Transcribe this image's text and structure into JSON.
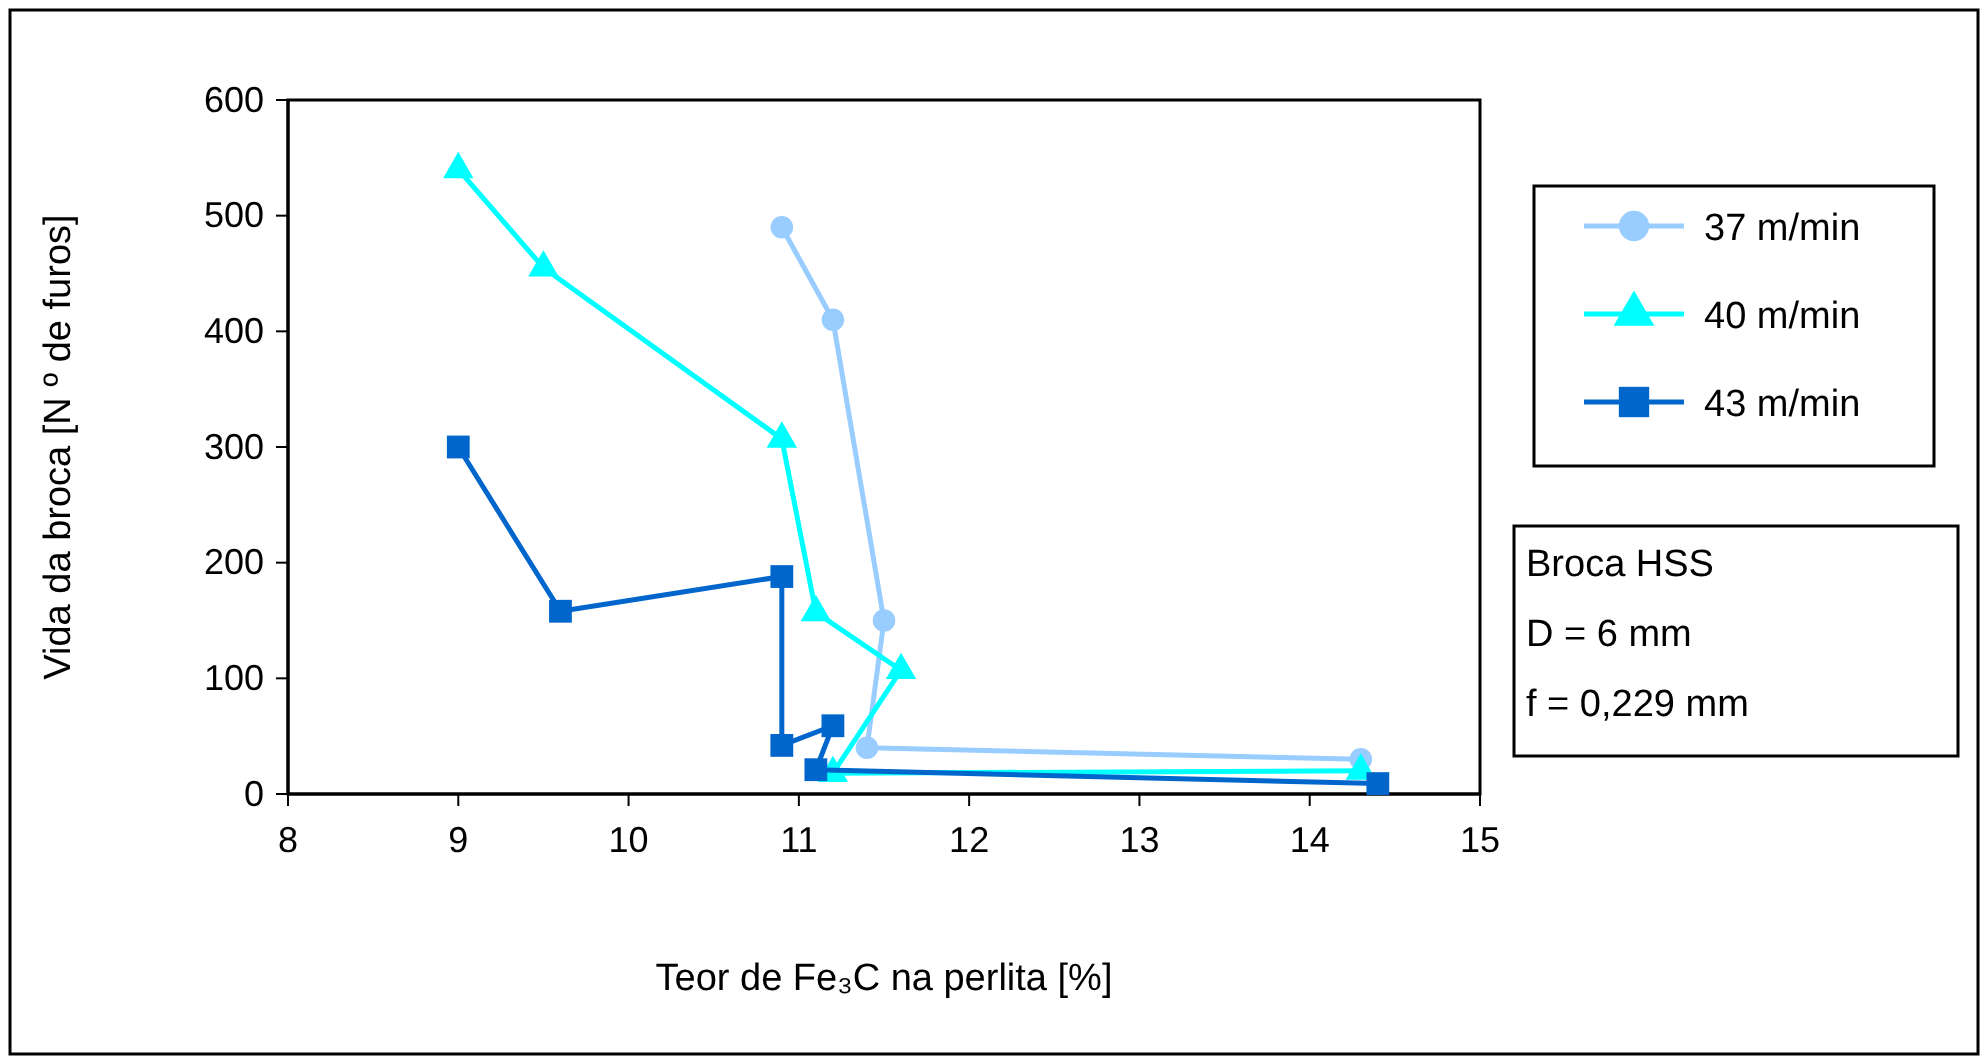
{
  "chart_data": {
    "type": "line",
    "xlabel": "Teor de Fe₃C na perlita [%]",
    "ylabel": "Vida da broca [N º de furos]",
    "xlim": [
      8,
      15
    ],
    "xticks": [
      8,
      9,
      10,
      11,
      12,
      13,
      14,
      15
    ],
    "ylim": [
      0,
      600
    ],
    "yticks": [
      0,
      100,
      200,
      300,
      400,
      500,
      600
    ],
    "grid": false,
    "legend": "right",
    "annotations": [
      "Broca HSS",
      "D = 6 mm",
      "f = 0,229 mm"
    ],
    "series": [
      {
        "name": "37 m/min",
        "color": "#99ccff",
        "marker": "circle",
        "x": [
          10.9,
          11.2,
          11.5,
          11.4,
          14.3
        ],
        "values": [
          490,
          410,
          150,
          40,
          30
        ]
      },
      {
        "name": "40 m/min",
        "color": "#00ffff",
        "marker": "triangle",
        "x": [
          9,
          9.5,
          10.9,
          11.1,
          11.6,
          11.2,
          14.3
        ],
        "values": [
          540,
          455,
          307,
          157,
          107,
          18,
          20
        ]
      },
      {
        "name": "43 m/min",
        "color": "#0066cc",
        "marker": "square",
        "x": [
          9,
          9.6,
          10.9,
          10.9,
          11.2,
          11.1,
          14.4
        ],
        "values": [
          300,
          158,
          188,
          42,
          59,
          21,
          9
        ]
      }
    ]
  }
}
